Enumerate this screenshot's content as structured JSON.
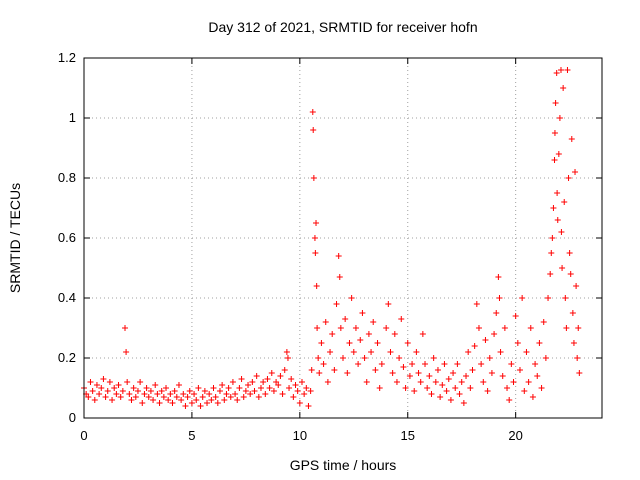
{
  "chart_data": {
    "type": "scatter",
    "title": "Day 312 of 2021, SRMTID for receiver hofn",
    "xlabel": "GPS time / hours",
    "ylabel": "SRMTID / TECUs",
    "xlim": [
      0,
      24
    ],
    "ylim": [
      0,
      1.2
    ],
    "xticks": [
      0,
      5,
      10,
      15,
      20
    ],
    "yticks": [
      0,
      0.2,
      0.4,
      0.6,
      0.8,
      1,
      1.2
    ],
    "xtick_labels": [
      "0",
      "5",
      "10",
      "15",
      "20"
    ],
    "ytick_labels": [
      "0",
      "0.2",
      "0.4",
      "0.6",
      "0.8",
      "1",
      "1.2"
    ],
    "grid": true,
    "marker": "+",
    "color": "#ff0000",
    "series": [
      {
        "name": "SRMTID",
        "points": [
          [
            0.0,
            0.1
          ],
          [
            0.1,
            0.08
          ],
          [
            0.2,
            0.07
          ],
          [
            0.3,
            0.12
          ],
          [
            0.4,
            0.09
          ],
          [
            0.5,
            0.06
          ],
          [
            0.6,
            0.11
          ],
          [
            0.7,
            0.08
          ],
          [
            0.8,
            0.1
          ],
          [
            0.9,
            0.13
          ],
          [
            1.0,
            0.07
          ],
          [
            1.1,
            0.09
          ],
          [
            1.2,
            0.12
          ],
          [
            1.3,
            0.06
          ],
          [
            1.4,
            0.1
          ],
          [
            1.5,
            0.08
          ],
          [
            1.6,
            0.11
          ],
          [
            1.7,
            0.07
          ],
          [
            1.8,
            0.09
          ],
          [
            1.9,
            0.3
          ],
          [
            1.95,
            0.22
          ],
          [
            2.0,
            0.12
          ],
          [
            2.1,
            0.08
          ],
          [
            2.2,
            0.06
          ],
          [
            2.3,
            0.1
          ],
          [
            2.4,
            0.07
          ],
          [
            2.5,
            0.09
          ],
          [
            2.6,
            0.12
          ],
          [
            2.7,
            0.05
          ],
          [
            2.8,
            0.08
          ],
          [
            2.9,
            0.1
          ],
          [
            3.0,
            0.07
          ],
          [
            3.1,
            0.09
          ],
          [
            3.2,
            0.06
          ],
          [
            3.3,
            0.11
          ],
          [
            3.4,
            0.08
          ],
          [
            3.5,
            0.05
          ],
          [
            3.6,
            0.09
          ],
          [
            3.7,
            0.07
          ],
          [
            3.8,
            0.1
          ],
          [
            3.9,
            0.06
          ],
          [
            4.0,
            0.08
          ],
          [
            4.1,
            0.05
          ],
          [
            4.2,
            0.09
          ],
          [
            4.3,
            0.07
          ],
          [
            4.4,
            0.11
          ],
          [
            4.5,
            0.06
          ],
          [
            4.6,
            0.08
          ],
          [
            4.7,
            0.04
          ],
          [
            4.8,
            0.07
          ],
          [
            4.9,
            0.09
          ],
          [
            5.0,
            0.05
          ],
          [
            5.1,
            0.08
          ],
          [
            5.2,
            0.06
          ],
          [
            5.3,
            0.1
          ],
          [
            5.4,
            0.04
          ],
          [
            5.5,
            0.07
          ],
          [
            5.6,
            0.09
          ],
          [
            5.7,
            0.05
          ],
          [
            5.8,
            0.08
          ],
          [
            5.9,
            0.06
          ],
          [
            6.0,
            0.1
          ],
          [
            6.1,
            0.07
          ],
          [
            6.2,
            0.05
          ],
          [
            6.3,
            0.09
          ],
          [
            6.4,
            0.11
          ],
          [
            6.5,
            0.06
          ],
          [
            6.6,
            0.08
          ],
          [
            6.7,
            0.1
          ],
          [
            6.8,
            0.07
          ],
          [
            6.9,
            0.12
          ],
          [
            7.0,
            0.08
          ],
          [
            7.1,
            0.06
          ],
          [
            7.2,
            0.1
          ],
          [
            7.3,
            0.13
          ],
          [
            7.4,
            0.07
          ],
          [
            7.5,
            0.09
          ],
          [
            7.6,
            0.11
          ],
          [
            7.7,
            0.08
          ],
          [
            7.8,
            0.12
          ],
          [
            7.9,
            0.09
          ],
          [
            8.0,
            0.14
          ],
          [
            8.1,
            0.07
          ],
          [
            8.2,
            0.1
          ],
          [
            8.3,
            0.12
          ],
          [
            8.4,
            0.08
          ],
          [
            8.5,
            0.13
          ],
          [
            8.6,
            0.1
          ],
          [
            8.7,
            0.15
          ],
          [
            8.8,
            0.09
          ],
          [
            8.9,
            0.12
          ],
          [
            9.0,
            0.11
          ],
          [
            9.1,
            0.14
          ],
          [
            9.2,
            0.08
          ],
          [
            9.3,
            0.16
          ],
          [
            9.4,
            0.22
          ],
          [
            9.45,
            0.2
          ],
          [
            9.5,
            0.1
          ],
          [
            9.6,
            0.13
          ],
          [
            9.7,
            0.07
          ],
          [
            9.8,
            0.11
          ],
          [
            9.9,
            0.09
          ],
          [
            10.0,
            0.05
          ],
          [
            10.1,
            0.12
          ],
          [
            10.2,
            0.08
          ],
          [
            10.3,
            0.1
          ],
          [
            10.4,
            0.04
          ],
          [
            10.5,
            0.09
          ],
          [
            10.55,
            0.16
          ],
          [
            10.6,
            1.02
          ],
          [
            10.62,
            0.96
          ],
          [
            10.65,
            0.8
          ],
          [
            10.7,
            0.6
          ],
          [
            10.72,
            0.55
          ],
          [
            10.75,
            0.65
          ],
          [
            10.78,
            0.44
          ],
          [
            10.8,
            0.3
          ],
          [
            10.85,
            0.2
          ],
          [
            10.9,
            0.15
          ],
          [
            11.0,
            0.25
          ],
          [
            11.1,
            0.18
          ],
          [
            11.2,
            0.32
          ],
          [
            11.3,
            0.12
          ],
          [
            11.4,
            0.22
          ],
          [
            11.5,
            0.28
          ],
          [
            11.6,
            0.16
          ],
          [
            11.7,
            0.38
          ],
          [
            11.8,
            0.54
          ],
          [
            11.85,
            0.47
          ],
          [
            11.9,
            0.3
          ],
          [
            12.0,
            0.2
          ],
          [
            12.1,
            0.33
          ],
          [
            12.2,
            0.15
          ],
          [
            12.3,
            0.25
          ],
          [
            12.4,
            0.4
          ],
          [
            12.5,
            0.22
          ],
          [
            12.6,
            0.3
          ],
          [
            12.7,
            0.18
          ],
          [
            12.8,
            0.26
          ],
          [
            12.9,
            0.35
          ],
          [
            13.0,
            0.2
          ],
          [
            13.1,
            0.12
          ],
          [
            13.2,
            0.28
          ],
          [
            13.3,
            0.22
          ],
          [
            13.4,
            0.32
          ],
          [
            13.5,
            0.16
          ],
          [
            13.6,
            0.25
          ],
          [
            13.7,
            0.1
          ],
          [
            13.8,
            0.18
          ],
          [
            14.0,
            0.3
          ],
          [
            14.1,
            0.38
          ],
          [
            14.2,
            0.22
          ],
          [
            14.3,
            0.15
          ],
          [
            14.4,
            0.28
          ],
          [
            14.5,
            0.12
          ],
          [
            14.6,
            0.2
          ],
          [
            14.7,
            0.33
          ],
          [
            14.8,
            0.17
          ],
          [
            14.9,
            0.1
          ],
          [
            15.0,
            0.25
          ],
          [
            15.1,
            0.14
          ],
          [
            15.2,
            0.18
          ],
          [
            15.3,
            0.09
          ],
          [
            15.4,
            0.22
          ],
          [
            15.5,
            0.15
          ],
          [
            15.6,
            0.12
          ],
          [
            15.7,
            0.28
          ],
          [
            15.8,
            0.18
          ],
          [
            15.9,
            0.1
          ],
          [
            16.0,
            0.14
          ],
          [
            16.1,
            0.08
          ],
          [
            16.2,
            0.2
          ],
          [
            16.3,
            0.12
          ],
          [
            16.4,
            0.16
          ],
          [
            16.5,
            0.07
          ],
          [
            16.6,
            0.11
          ],
          [
            16.7,
            0.18
          ],
          [
            16.8,
            0.09
          ],
          [
            16.9,
            0.13
          ],
          [
            17.0,
            0.06
          ],
          [
            17.1,
            0.15
          ],
          [
            17.2,
            0.1
          ],
          [
            17.3,
            0.18
          ],
          [
            17.4,
            0.08
          ],
          [
            17.5,
            0.12
          ],
          [
            17.6,
            0.05
          ],
          [
            17.7,
            0.14
          ],
          [
            17.8,
            0.22
          ],
          [
            17.9,
            0.1
          ],
          [
            18.0,
            0.16
          ],
          [
            18.1,
            0.24
          ],
          [
            18.2,
            0.38
          ],
          [
            18.3,
            0.3
          ],
          [
            18.4,
            0.18
          ],
          [
            18.5,
            0.12
          ],
          [
            18.6,
            0.26
          ],
          [
            18.7,
            0.09
          ],
          [
            18.8,
            0.2
          ],
          [
            18.9,
            0.15
          ],
          [
            19.0,
            0.28
          ],
          [
            19.1,
            0.35
          ],
          [
            19.2,
            0.47
          ],
          [
            19.25,
            0.4
          ],
          [
            19.3,
            0.22
          ],
          [
            19.4,
            0.14
          ],
          [
            19.5,
            0.3
          ],
          [
            19.6,
            0.1
          ],
          [
            19.7,
            0.06
          ],
          [
            19.8,
            0.18
          ],
          [
            19.9,
            0.12
          ],
          [
            20.0,
            0.34
          ],
          [
            20.1,
            0.25
          ],
          [
            20.2,
            0.16
          ],
          [
            20.3,
            0.4
          ],
          [
            20.4,
            0.09
          ],
          [
            20.5,
            0.22
          ],
          [
            20.6,
            0.12
          ],
          [
            20.7,
            0.3
          ],
          [
            20.8,
            0.07
          ],
          [
            20.9,
            0.18
          ],
          [
            21.0,
            0.14
          ],
          [
            21.1,
            0.25
          ],
          [
            21.2,
            0.1
          ],
          [
            21.3,
            0.32
          ],
          [
            21.4,
            0.2
          ],
          [
            21.5,
            0.4
          ],
          [
            21.6,
            0.48
          ],
          [
            21.65,
            0.55
          ],
          [
            21.7,
            0.6
          ],
          [
            21.75,
            0.7
          ],
          [
            21.8,
            0.86
          ],
          [
            21.82,
            0.95
          ],
          [
            21.85,
            1.05
          ],
          [
            21.9,
            1.15
          ],
          [
            21.92,
            0.75
          ],
          [
            21.95,
            0.66
          ],
          [
            22.0,
            0.88
          ],
          [
            22.05,
            1.0
          ],
          [
            22.1,
            1.16
          ],
          [
            22.12,
            0.62
          ],
          [
            22.15,
            0.5
          ],
          [
            22.2,
            1.1
          ],
          [
            22.25,
            0.72
          ],
          [
            22.3,
            0.4
          ],
          [
            22.35,
            0.3
          ],
          [
            22.4,
            1.16
          ],
          [
            22.45,
            0.8
          ],
          [
            22.5,
            0.55
          ],
          [
            22.55,
            0.48
          ],
          [
            22.6,
            0.93
          ],
          [
            22.65,
            0.35
          ],
          [
            22.7,
            0.25
          ],
          [
            22.75,
            0.82
          ],
          [
            22.8,
            0.44
          ],
          [
            22.85,
            0.2
          ],
          [
            22.9,
            0.3
          ],
          [
            22.95,
            0.15
          ]
        ]
      }
    ]
  }
}
